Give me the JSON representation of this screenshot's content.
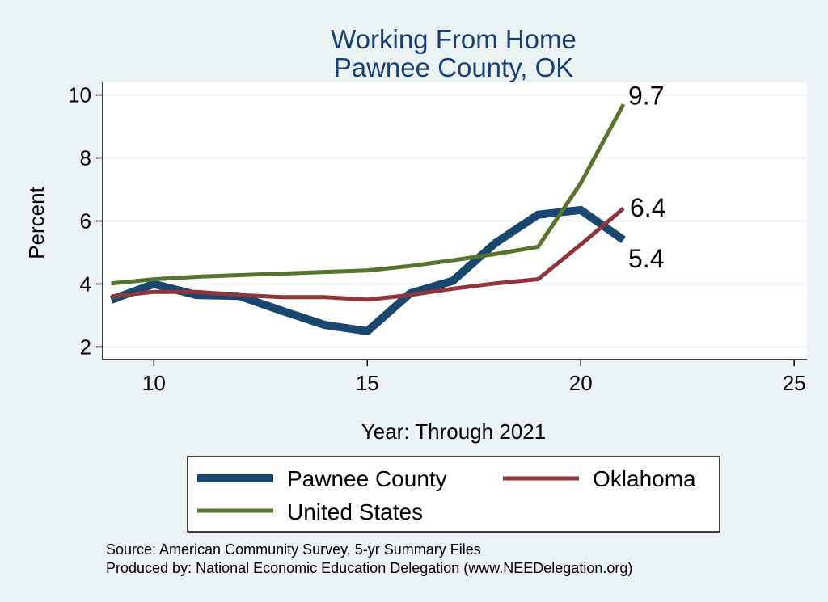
{
  "chart_data": {
    "type": "line",
    "title": "Working From Home",
    "subtitle": "Pawnee County, OK",
    "xlabel": "Year: Through 2021",
    "ylabel": "Percent",
    "xlim": [
      8.8,
      25.3
    ],
    "ylim": [
      1.6,
      10.4
    ],
    "x_ticks": [
      10,
      15,
      20,
      25
    ],
    "y_ticks": [
      2,
      4,
      6,
      8,
      10
    ],
    "grid": true,
    "legend_position": "bottom",
    "series": [
      {
        "name": "Pawnee County",
        "color": "#1a476f",
        "line_weight": "thick",
        "points": [
          [
            9,
            3.5
          ],
          [
            10,
            4.0
          ],
          [
            11,
            3.65
          ],
          [
            12,
            3.62
          ],
          [
            13,
            3.15
          ],
          [
            14,
            2.7
          ],
          [
            15,
            2.5
          ],
          [
            16,
            3.7
          ],
          [
            17,
            4.1
          ],
          [
            18,
            5.3
          ],
          [
            19,
            6.2
          ],
          [
            20,
            6.35
          ],
          [
            21,
            5.4
          ]
        ],
        "end_label": "5.4"
      },
      {
        "name": "Oklahoma",
        "color": "#90353b",
        "line_weight": "medium",
        "points": [
          [
            9,
            3.6
          ],
          [
            10,
            3.75
          ],
          [
            11,
            3.75
          ],
          [
            12,
            3.65
          ],
          [
            13,
            3.58
          ],
          [
            14,
            3.58
          ],
          [
            15,
            3.5
          ],
          [
            16,
            3.65
          ],
          [
            17,
            3.85
          ],
          [
            18,
            4.02
          ],
          [
            19,
            4.15
          ],
          [
            20,
            5.25
          ],
          [
            21,
            6.4
          ]
        ],
        "end_label": "6.4"
      },
      {
        "name": "United States",
        "color": "#55752f",
        "line_weight": "medium",
        "points": [
          [
            9,
            4.02
          ],
          [
            10,
            4.15
          ],
          [
            11,
            4.23
          ],
          [
            12,
            4.28
          ],
          [
            13,
            4.33
          ],
          [
            14,
            4.38
          ],
          [
            15,
            4.43
          ],
          [
            16,
            4.57
          ],
          [
            17,
            4.75
          ],
          [
            18,
            4.95
          ],
          [
            19,
            5.18
          ],
          [
            20,
            7.2
          ],
          [
            21,
            9.7
          ]
        ],
        "end_label": "9.7"
      }
    ],
    "legend": [
      "Pawnee County",
      "Oklahoma",
      "United States"
    ],
    "notes": [
      "Source: American Community Survey, 5-yr Summary Files",
      "Produced by: National Economic Education Delegation (www.NEEDelegation.org)"
    ]
  },
  "colors": {
    "background": "#eaf2f3",
    "plot_background": "#ffffff",
    "title": "#1a4174",
    "grid": "#eaf2f3"
  }
}
